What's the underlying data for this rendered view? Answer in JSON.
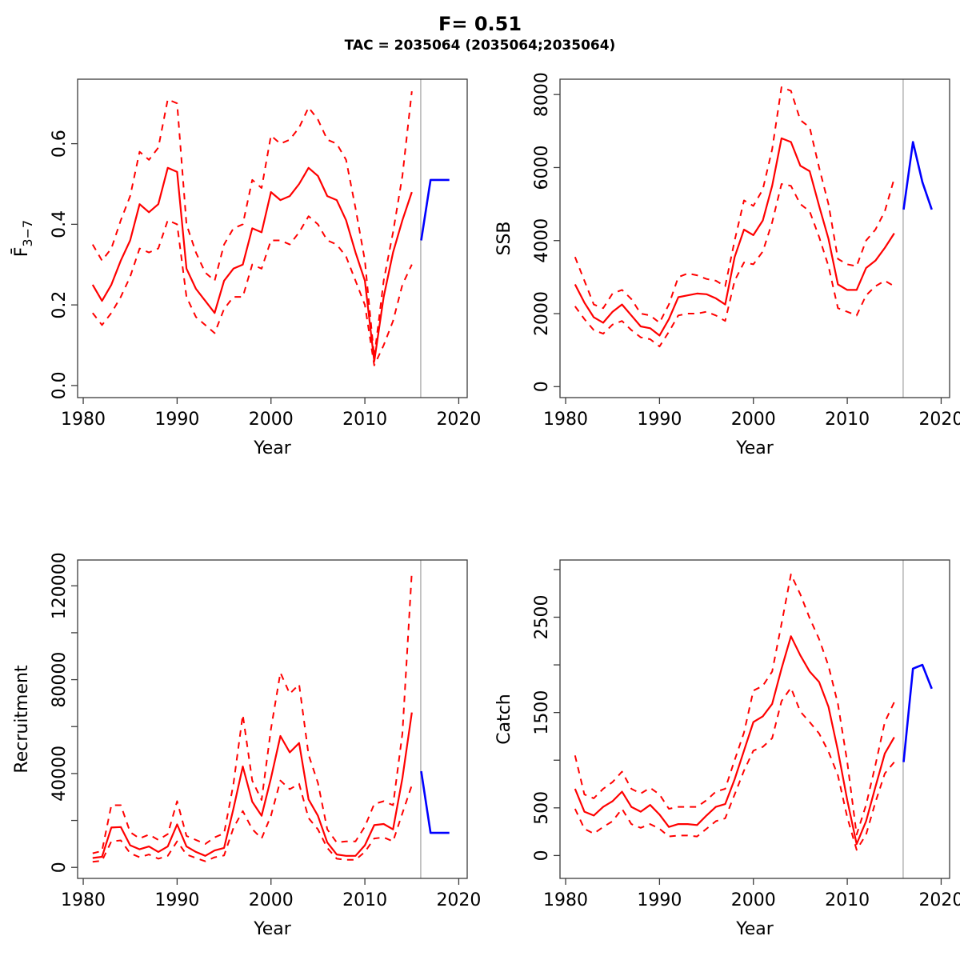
{
  "header": {
    "title": "F= 0.51",
    "subtitle": "TAC = 2035064 (2035064;2035064)"
  },
  "colors": {
    "median": "#FF0000",
    "interval": "#FF0000",
    "forecast": "#0000FF",
    "divider": "#BDBDBD",
    "box": "#3c3c3c",
    "text": "#000000"
  },
  "chart_data": [
    {
      "name": "fbar",
      "type": "line",
      "ylabel": "F̄",
      "ylabel_sub": "3−7",
      "xlabel": "Year",
      "legend": "none",
      "grid": false,
      "xlim": [
        1979.4,
        2020.9
      ],
      "ylim": [
        -0.03,
        0.76
      ],
      "xticks": [
        1980,
        1990,
        2000,
        2010,
        2020
      ],
      "yticks": [
        {
          "v": 0.0,
          "label": "0.0"
        },
        {
          "v": 0.2,
          "label": "0.2"
        },
        {
          "v": 0.4,
          "label": "0.4"
        },
        {
          "v": 0.6,
          "label": "0.6"
        }
      ],
      "divider_x": 2015.95,
      "years": [
        1981,
        1982,
        1983,
        1984,
        1985,
        1986,
        1987,
        1988,
        1989,
        1990,
        1991,
        1992,
        1993,
        1994,
        1995,
        1996,
        1997,
        1998,
        1999,
        2000,
        2001,
        2002,
        2003,
        2004,
        2005,
        2006,
        2007,
        2008,
        2009,
        2010,
        2011,
        2012,
        2013,
        2014,
        2015
      ],
      "median": [
        0.25,
        0.21,
        0.25,
        0.31,
        0.36,
        0.45,
        0.43,
        0.45,
        0.54,
        0.53,
        0.29,
        0.24,
        0.21,
        0.18,
        0.26,
        0.29,
        0.3,
        0.39,
        0.38,
        0.48,
        0.46,
        0.47,
        0.5,
        0.54,
        0.52,
        0.47,
        0.46,
        0.41,
        0.33,
        0.26,
        0.06,
        0.22,
        0.33,
        0.41,
        0.48
      ],
      "upper": [
        0.35,
        0.31,
        0.34,
        0.41,
        0.47,
        0.58,
        0.56,
        0.59,
        0.71,
        0.7,
        0.4,
        0.33,
        0.28,
        0.26,
        0.35,
        0.39,
        0.4,
        0.51,
        0.49,
        0.62,
        0.6,
        0.61,
        0.64,
        0.69,
        0.66,
        0.61,
        0.6,
        0.56,
        0.44,
        0.31,
        0.07,
        0.26,
        0.38,
        0.52,
        0.73
      ],
      "lower": [
        0.18,
        0.15,
        0.18,
        0.22,
        0.27,
        0.34,
        0.33,
        0.34,
        0.41,
        0.4,
        0.22,
        0.17,
        0.15,
        0.13,
        0.19,
        0.22,
        0.22,
        0.3,
        0.29,
        0.36,
        0.36,
        0.35,
        0.38,
        0.42,
        0.4,
        0.36,
        0.35,
        0.32,
        0.26,
        0.2,
        0.05,
        0.1,
        0.16,
        0.25,
        0.3
      ],
      "forecast_years": [
        2016,
        2017,
        2018,
        2019
      ],
      "forecast": [
        0.36,
        0.51,
        0.51,
        0.51
      ]
    },
    {
      "name": "ssb",
      "type": "line",
      "ylabel": "SSB",
      "xlabel": "Year",
      "legend": "none",
      "grid": false,
      "xlim": [
        1979.4,
        2020.9
      ],
      "ylim": [
        -300,
        8420
      ],
      "xticks": [
        1980,
        1990,
        2000,
        2010,
        2020
      ],
      "yticks": [
        {
          "v": 0,
          "label": "0"
        },
        {
          "v": 2000,
          "label": "2000"
        },
        {
          "v": 4000,
          "label": "4000"
        },
        {
          "v": 6000,
          "label": "6000"
        },
        {
          "v": 8000,
          "label": "8000"
        }
      ],
      "divider_x": 2015.95,
      "years": [
        1981,
        1982,
        1983,
        1984,
        1985,
        1986,
        1987,
        1988,
        1989,
        1990,
        1991,
        1992,
        1993,
        1994,
        1995,
        1996,
        1997,
        1998,
        1999,
        2000,
        2001,
        2002,
        2003,
        2004,
        2005,
        2006,
        2007,
        2008,
        2009,
        2010,
        2011,
        2012,
        2013,
        2014,
        2015
      ],
      "median": [
        2800,
        2300,
        1900,
        1750,
        2050,
        2250,
        1950,
        1650,
        1600,
        1400,
        1850,
        2450,
        2500,
        2550,
        2530,
        2420,
        2250,
        3550,
        4300,
        4150,
        4550,
        5500,
        6800,
        6700,
        6050,
        5900,
        4950,
        4050,
        2800,
        2650,
        2650,
        3250,
        3450,
        3800,
        4200
      ],
      "upper": [
        3550,
        2900,
        2250,
        2150,
        2550,
        2650,
        2400,
        2000,
        1950,
        1750,
        2250,
        3000,
        3100,
        3050,
        2950,
        2900,
        2750,
        4000,
        5100,
        4950,
        5400,
        6500,
        8200,
        8100,
        7300,
        7100,
        6000,
        5000,
        3500,
        3350,
        3300,
        4000,
        4300,
        4800,
        5700
      ],
      "lower": [
        2200,
        1850,
        1550,
        1450,
        1700,
        1800,
        1550,
        1350,
        1300,
        1100,
        1500,
        1950,
        2000,
        2000,
        2050,
        1950,
        1800,
        2900,
        3400,
        3350,
        3700,
        4500,
        5550,
        5500,
        5000,
        4800,
        4100,
        3300,
        2150,
        2050,
        1950,
        2500,
        2750,
        2900,
        2750
      ],
      "forecast_years": [
        2016,
        2017,
        2018,
        2019
      ],
      "forecast": [
        4850,
        6700,
        5600,
        4850
      ]
    },
    {
      "name": "recruitment",
      "type": "line",
      "ylabel": "Recruitment",
      "xlabel": "Year",
      "legend": "none",
      "grid": false,
      "xlim": [
        1979.4,
        2020.9
      ],
      "ylim": [
        -4700,
        131000
      ],
      "xticks": [
        1980,
        1990,
        2000,
        2010,
        2020
      ],
      "yticks": [
        {
          "v": 0,
          "label": "0"
        },
        {
          "v": 20000,
          "label": ""
        },
        {
          "v": 40000,
          "label": "40000"
        },
        {
          "v": 60000,
          "label": ""
        },
        {
          "v": 80000,
          "label": "80000"
        },
        {
          "v": 100000,
          "label": ""
        },
        {
          "v": 120000,
          "label": "120000"
        }
      ],
      "divider_x": 2015.95,
      "years": [
        1981,
        1982,
        1983,
        1984,
        1985,
        1986,
        1987,
        1988,
        1989,
        1990,
        1991,
        1992,
        1993,
        1994,
        1995,
        1996,
        1997,
        1998,
        1999,
        2000,
        2001,
        2002,
        2003,
        2004,
        2005,
        2006,
        2007,
        2008,
        2009,
        2010,
        2011,
        2012,
        2013,
        2014,
        2015
      ],
      "median": [
        4000,
        4500,
        17000,
        17200,
        9400,
        7700,
        8900,
        6600,
        8900,
        18300,
        8900,
        6600,
        4900,
        7200,
        8300,
        25000,
        43000,
        28000,
        22000,
        38000,
        56000,
        49000,
        53000,
        29000,
        22000,
        10600,
        5500,
        4900,
        4900,
        9400,
        18000,
        18500,
        16200,
        38000,
        66000
      ],
      "upper": [
        6000,
        7000,
        26500,
        26500,
        15000,
        12300,
        14000,
        11700,
        14200,
        28200,
        13400,
        11700,
        10000,
        12800,
        14500,
        35500,
        65000,
        37000,
        28700,
        59000,
        83000,
        74000,
        78000,
        48000,
        36000,
        16200,
        10600,
        11100,
        11100,
        17400,
        27000,
        28200,
        26500,
        57000,
        126000
      ],
      "lower": [
        2400,
        2800,
        11100,
        11500,
        6000,
        4300,
        5500,
        3700,
        4900,
        11100,
        5500,
        4000,
        2600,
        4300,
        5100,
        16800,
        24000,
        16300,
        12300,
        22000,
        37000,
        33300,
        35600,
        21000,
        16200,
        8300,
        3700,
        3200,
        3200,
        6600,
        12300,
        12800,
        11100,
        23100,
        35000
      ],
      "forecast_years": [
        2016,
        2017,
        2018,
        2019
      ],
      "forecast": [
        41000,
        14700,
        14700,
        14700
      ]
    },
    {
      "name": "catch",
      "type": "line",
      "ylabel": "Catch",
      "xlabel": "Year",
      "legend": "none",
      "grid": false,
      "xlim": [
        1979.4,
        2020.9
      ],
      "ylim": [
        -240,
        3100
      ],
      "xticks": [
        1980,
        1990,
        2000,
        2010,
        2020
      ],
      "yticks": [
        {
          "v": 0,
          "label": "0"
        },
        {
          "v": 500,
          "label": "500"
        },
        {
          "v": 1000,
          "label": ""
        },
        {
          "v": 1500,
          "label": "1500"
        },
        {
          "v": 2000,
          "label": ""
        },
        {
          "v": 2500,
          "label": "2500"
        },
        {
          "v": 3000,
          "label": ""
        }
      ],
      "divider_x": 2015.95,
      "years": [
        1981,
        1982,
        1983,
        1984,
        1985,
        1986,
        1987,
        1988,
        1989,
        1990,
        1991,
        1992,
        1993,
        1994,
        1995,
        1996,
        1997,
        1998,
        1999,
        2000,
        2001,
        2002,
        2003,
        2004,
        2005,
        2006,
        2007,
        2008,
        2009,
        2010,
        2011,
        2012,
        2013,
        2014,
        2015
      ],
      "median": [
        700,
        460,
        420,
        510,
        570,
        670,
        510,
        460,
        530,
        430,
        300,
        330,
        330,
        320,
        420,
        510,
        540,
        800,
        1100,
        1400,
        1460,
        1590,
        1960,
        2300,
        2100,
        1930,
        1820,
        1560,
        1100,
        580,
        120,
        360,
        720,
        1070,
        1240
      ],
      "upper": [
        1050,
        640,
        600,
        700,
        770,
        880,
        700,
        650,
        710,
        640,
        490,
        510,
        510,
        510,
        580,
        670,
        700,
        1000,
        1290,
        1730,
        1780,
        1930,
        2430,
        2950,
        2740,
        2490,
        2270,
        1990,
        1590,
        980,
        220,
        530,
        950,
        1400,
        1610
      ],
      "lower": [
        490,
        280,
        230,
        300,
        360,
        490,
        330,
        290,
        330,
        280,
        200,
        210,
        210,
        200,
        280,
        360,
        390,
        640,
        890,
        1100,
        1140,
        1230,
        1620,
        1760,
        1510,
        1400,
        1280,
        1090,
        840,
        400,
        60,
        220,
        560,
        860,
        980
      ],
      "forecast_years": [
        2016,
        2017,
        2018,
        2019
      ],
      "forecast": [
        980,
        1960,
        2000,
        1750
      ]
    }
  ]
}
